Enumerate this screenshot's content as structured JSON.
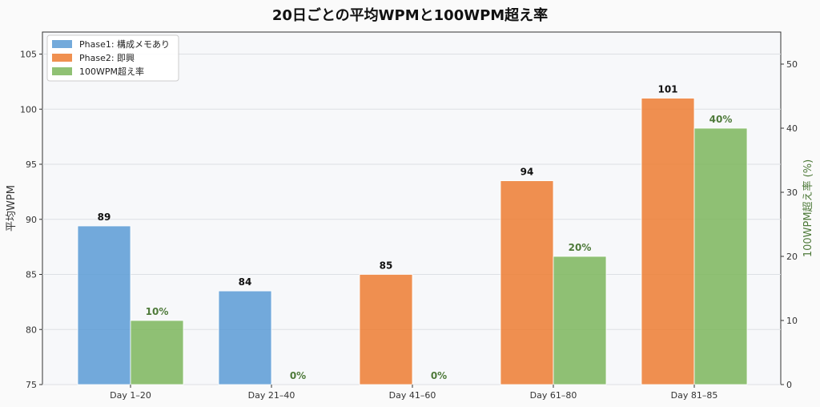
{
  "chart_data": {
    "type": "bar",
    "title": "20日ごとの平均WPMと100WPM超え率",
    "xlabel": "",
    "ylabel": "平均WPM",
    "ylabel_right": "100WPM超え率 (%)",
    "categories": [
      "Day 1–20",
      "Day 21–40",
      "Day 41–60",
      "Day 61–80",
      "Day 81–85"
    ],
    "ylim": [
      75,
      107
    ],
    "ylim_right": [
      0,
      55
    ],
    "yticks": [
      75,
      80,
      85,
      90,
      95,
      100,
      105
    ],
    "yticks_right": [
      0,
      10,
      20,
      30,
      40,
      50
    ],
    "grid": true,
    "legend_position": "top-left",
    "series": [
      {
        "name": "Phase1: 構成メモあり",
        "axis": "left",
        "color": "#5b9bd5",
        "values": [
          89.4,
          83.5,
          null,
          null,
          null
        ],
        "labels": [
          "89",
          "84",
          "",
          "",
          ""
        ]
      },
      {
        "name": "Phase2: 即興",
        "axis": "left",
        "color": "#ed7d31",
        "values": [
          null,
          null,
          85.0,
          93.5,
          101.0
        ],
        "labels": [
          "",
          "",
          "85",
          "94",
          "101"
        ]
      },
      {
        "name": "100WPM超え率",
        "axis": "right",
        "color": "#7cb65c",
        "values": [
          10,
          0,
          0,
          20,
          40
        ],
        "labels": [
          "10%",
          "0%",
          "0%",
          "20%",
          "40%"
        ]
      }
    ],
    "colors": {
      "right_axis_label": "#4e7a3a",
      "plot_bg": "#f7f8fa",
      "grid": "#dde0e4"
    }
  }
}
